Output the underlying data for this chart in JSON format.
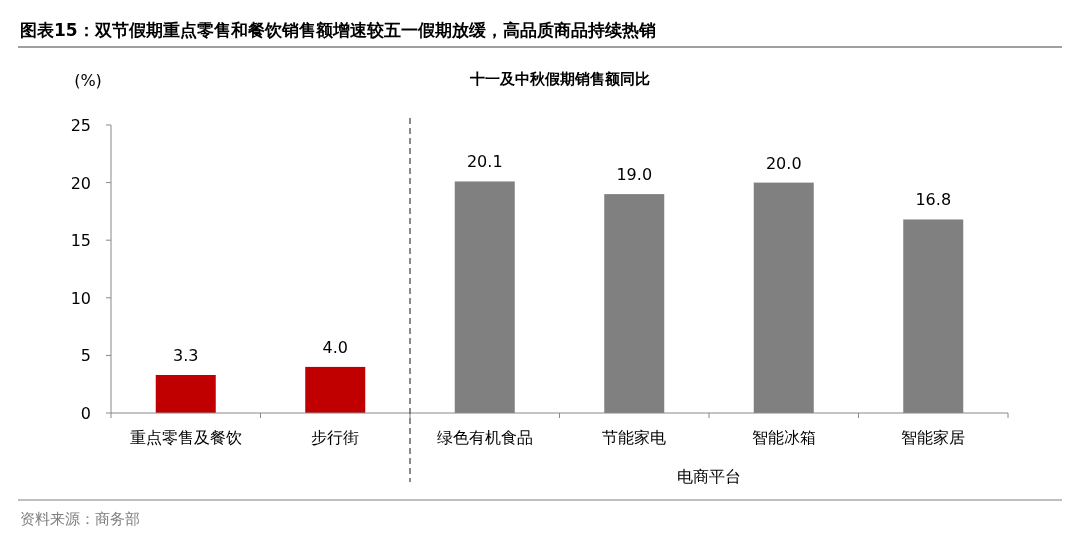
{
  "chart_data": {
    "type": "bar",
    "title": "图表15：双节假期重点零售和餐饮销售额增速较五一假期放缓，高品质商品持续热销",
    "subtitle": "十一及中秋假期销售额同比",
    "ylabel": "(%)",
    "categories": [
      "重点零售及餐饮",
      "步行街",
      "绿色有机食品",
      "节能家电",
      "智能冰箱",
      "智能家居"
    ],
    "values": [
      3.3,
      4.0,
      20.1,
      19.0,
      20.0,
      16.8
    ],
    "colors": [
      "#c00000",
      "#c00000",
      "#808080",
      "#808080",
      "#808080",
      "#808080"
    ],
    "value_labels": [
      "3.3",
      "4.0",
      "20.1",
      "19.0",
      "20.0",
      "16.8"
    ],
    "ylim": [
      0,
      25
    ],
    "yticks": [
      0,
      5,
      10,
      15,
      20,
      25
    ],
    "annotations": [
      "电商平台",
      "资料来源：商务部"
    ]
  }
}
